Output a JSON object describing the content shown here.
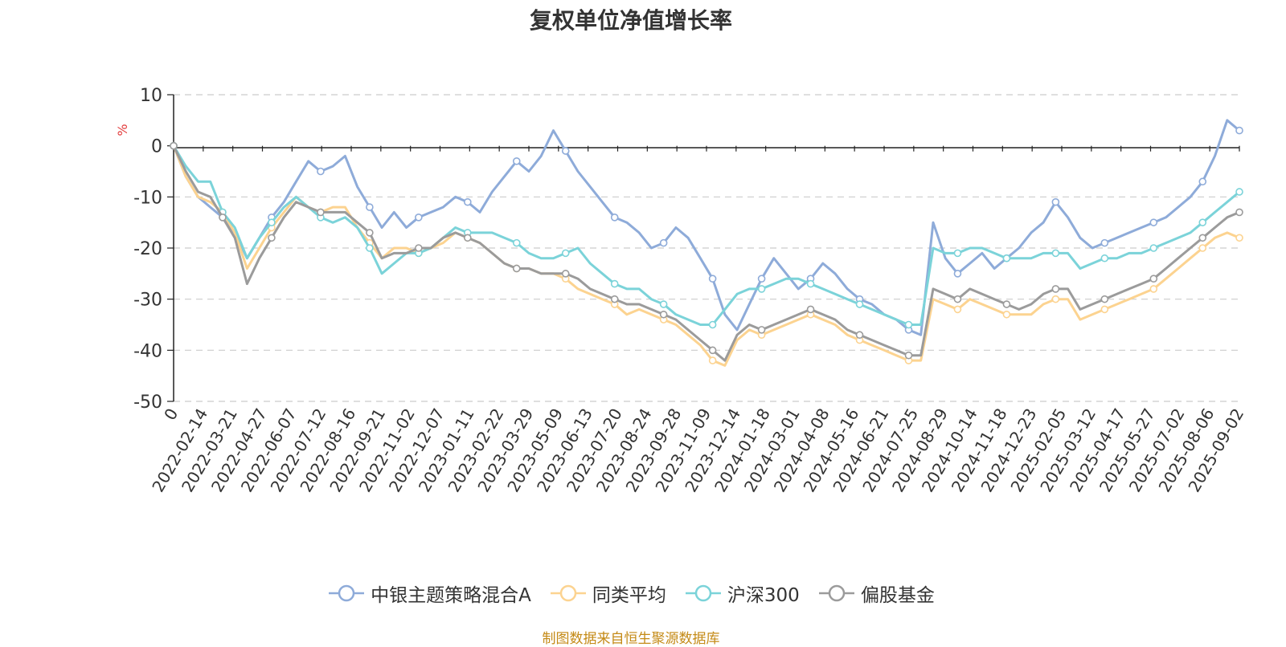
{
  "chart_data": {
    "type": "line",
    "title": "复权单位净值增长率",
    "ylabel": "%",
    "ylim": [
      -50,
      10
    ],
    "yticks": [
      10,
      0,
      -10,
      -20,
      -30,
      -40,
      -50
    ],
    "grid": true,
    "legend_position": "bottom",
    "x_ticks": [
      "0",
      "2022-02-14",
      "2022-03-21",
      "2022-04-27",
      "2022-06-07",
      "2022-07-12",
      "2022-08-16",
      "2022-09-21",
      "2022-11-02",
      "2022-12-07",
      "2023-01-11",
      "2023-02-22",
      "2023-03-29",
      "2023-05-09",
      "2023-06-13",
      "2023-07-20",
      "2023-08-24",
      "2023-09-28",
      "2023-11-09",
      "2023-12-14",
      "2024-01-18",
      "2024-03-01",
      "2024-04-08",
      "2024-05-16",
      "2024-06-21",
      "2024-07-25",
      "2024-08-29",
      "2024-10-14",
      "2024-11-18",
      "2024-12-23",
      "2025-02-05",
      "2025-03-12",
      "2025-04-17",
      "2025-05-27",
      "2025-07-02",
      "2025-08-06",
      "2025-09-02"
    ],
    "series": [
      {
        "name": "中银主题策略混合A",
        "color": "#8eabd9",
        "values": [
          0,
          -6,
          -10,
          -12,
          -14,
          -17,
          -22,
          -18,
          -14,
          -11,
          -7,
          -3,
          -5,
          -4,
          -2,
          -8,
          -12,
          -16,
          -13,
          -16,
          -14,
          -13,
          -12,
          -10,
          -11,
          -13,
          -9,
          -6,
          -3,
          -5,
          -2,
          3,
          -1,
          -5,
          -8,
          -11,
          -14,
          -15,
          -17,
          -20,
          -19,
          -16,
          -18,
          -22,
          -26,
          -33,
          -36,
          -31,
          -26,
          -22,
          -25,
          -28,
          -26,
          -23,
          -25,
          -28,
          -30,
          -31,
          -33,
          -34,
          -36,
          -37,
          -15,
          -22,
          -25,
          -23,
          -21,
          -24,
          -22,
          -20,
          -17,
          -15,
          -11,
          -14,
          -18,
          -20,
          -19,
          -18,
          -17,
          -16,
          -15,
          -14,
          -12,
          -10,
          -7,
          -2,
          5,
          3
        ]
      },
      {
        "name": "同类平均",
        "color": "#fcd390",
        "values": [
          0,
          -6,
          -10,
          -11,
          -13,
          -17,
          -24,
          -20,
          -16,
          -13,
          -10,
          -12,
          -13,
          -12,
          -12,
          -16,
          -19,
          -22,
          -20,
          -20,
          -21,
          -20,
          -19,
          -17,
          -18,
          -19,
          -21,
          -23,
          -24,
          -24,
          -25,
          -25,
          -26,
          -28,
          -29,
          -30,
          -31,
          -33,
          -32,
          -33,
          -34,
          -35,
          -37,
          -39,
          -42,
          -43,
          -38,
          -36,
          -37,
          -36,
          -35,
          -34,
          -33,
          -34,
          -35,
          -37,
          -38,
          -39,
          -40,
          -41,
          -42,
          -42,
          -30,
          -31,
          -32,
          -30,
          -31,
          -32,
          -33,
          -33,
          -33,
          -31,
          -30,
          -30,
          -34,
          -33,
          -32,
          -31,
          -30,
          -29,
          -28,
          -26,
          -24,
          -22,
          -20,
          -18,
          -17,
          -18
        ]
      },
      {
        "name": "沪深300",
        "color": "#7bd3d9",
        "values": [
          0,
          -4,
          -7,
          -7,
          -13,
          -16,
          -22,
          -18,
          -15,
          -12,
          -10,
          -12,
          -14,
          -15,
          -14,
          -16,
          -20,
          -25,
          -23,
          -21,
          -21,
          -20,
          -18,
          -16,
          -17,
          -17,
          -17,
          -18,
          -19,
          -21,
          -22,
          -22,
          -21,
          -20,
          -23,
          -25,
          -27,
          -28,
          -28,
          -30,
          -31,
          -33,
          -34,
          -35,
          -35,
          -32,
          -29,
          -28,
          -28,
          -27,
          -26,
          -26,
          -27,
          -28,
          -29,
          -30,
          -31,
          -32,
          -33,
          -34,
          -35,
          -35,
          -20,
          -21,
          -21,
          -20,
          -20,
          -21,
          -22,
          -22,
          -22,
          -21,
          -21,
          -21,
          -24,
          -23,
          -22,
          -22,
          -21,
          -21,
          -20,
          -19,
          -18,
          -17,
          -15,
          -13,
          -11,
          -9
        ]
      },
      {
        "name": "偏股基金",
        "color": "#9b9b9b",
        "values": [
          0,
          -5,
          -9,
          -10,
          -14,
          -18,
          -27,
          -22,
          -18,
          -14,
          -11,
          -12,
          -13,
          -13,
          -13,
          -15,
          -17,
          -22,
          -21,
          -21,
          -20,
          -20,
          -18,
          -17,
          -18,
          -19,
          -21,
          -23,
          -24,
          -24,
          -25,
          -25,
          -25,
          -26,
          -28,
          -29,
          -30,
          -31,
          -31,
          -32,
          -33,
          -34,
          -36,
          -38,
          -40,
          -42,
          -37,
          -35,
          -36,
          -35,
          -34,
          -33,
          -32,
          -33,
          -34,
          -36,
          -37,
          -38,
          -39,
          -40,
          -41,
          -41,
          -28,
          -29,
          -30,
          -28,
          -29,
          -30,
          -31,
          -32,
          -31,
          -29,
          -28,
          -28,
          -32,
          -31,
          -30,
          -29,
          -28,
          -27,
          -26,
          -24,
          -22,
          -20,
          -18,
          -16,
          -14,
          -13
        ]
      }
    ]
  },
  "legend": [
    {
      "label": "中银主题策略混合A",
      "color": "#8eabd9"
    },
    {
      "label": "同类平均",
      "color": "#fcd390"
    },
    {
      "label": "沪深300",
      "color": "#7bd3d9"
    },
    {
      "label": "偏股基金",
      "color": "#9b9b9b"
    }
  ],
  "source_note": "制图数据来自恒生聚源数据库"
}
